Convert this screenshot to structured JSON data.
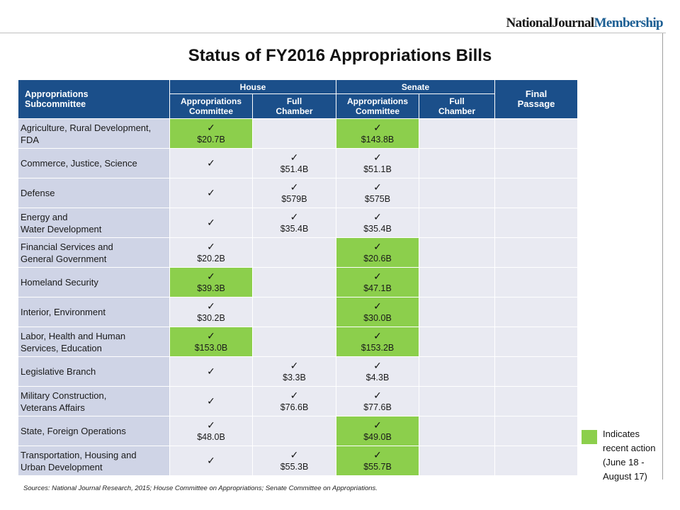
{
  "brand": {
    "part1": "NationalJournal",
    "part2": "Membership"
  },
  "title": "Status of FY2016 Appropriations Bills",
  "table": {
    "header": {
      "subcommittee": [
        "Appropriations",
        "Subcommittee"
      ],
      "house": "House",
      "senate": "Senate",
      "final": [
        "Final",
        "Passage"
      ],
      "house_approp": [
        "Appropriations",
        "Committee"
      ],
      "house_full": [
        "Full",
        "Chamber"
      ],
      "senate_approp": [
        "Appropriations",
        "Committee"
      ],
      "senate_full": [
        "Full",
        "Chamber"
      ]
    },
    "check_symbol": "✓",
    "rows": [
      {
        "name": [
          "Agriculture, Rural Development,",
          "FDA"
        ],
        "cells": [
          {
            "checked": true,
            "amount": "$20.7B",
            "highlight": true
          },
          {
            "checked": false,
            "amount": "",
            "highlight": false
          },
          {
            "checked": true,
            "amount": "$143.8B",
            "highlight": true
          },
          {
            "checked": false,
            "amount": "",
            "highlight": false
          },
          {
            "checked": false,
            "amount": "",
            "highlight": false
          }
        ]
      },
      {
        "name": [
          "Commerce, Justice, Science"
        ],
        "cells": [
          {
            "checked": true,
            "amount": "",
            "highlight": false
          },
          {
            "checked": true,
            "amount": "$51.4B",
            "highlight": false
          },
          {
            "checked": true,
            "amount": "$51.1B",
            "highlight": false
          },
          {
            "checked": false,
            "amount": "",
            "highlight": false
          },
          {
            "checked": false,
            "amount": "",
            "highlight": false
          }
        ]
      },
      {
        "name": [
          "Defense"
        ],
        "cells": [
          {
            "checked": true,
            "amount": "",
            "highlight": false
          },
          {
            "checked": true,
            "amount": "$579B",
            "highlight": false
          },
          {
            "checked": true,
            "amount": "$575B",
            "highlight": false
          },
          {
            "checked": false,
            "amount": "",
            "highlight": false
          },
          {
            "checked": false,
            "amount": "",
            "highlight": false
          }
        ]
      },
      {
        "name": [
          "Energy and",
          "Water Development"
        ],
        "cells": [
          {
            "checked": true,
            "amount": "",
            "highlight": false
          },
          {
            "checked": true,
            "amount": "$35.4B",
            "highlight": false
          },
          {
            "checked": true,
            "amount": "$35.4B",
            "highlight": false
          },
          {
            "checked": false,
            "amount": "",
            "highlight": false
          },
          {
            "checked": false,
            "amount": "",
            "highlight": false
          }
        ]
      },
      {
        "name": [
          "Financial Services and",
          "General Government"
        ],
        "cells": [
          {
            "checked": true,
            "amount": "$20.2B",
            "highlight": false
          },
          {
            "checked": false,
            "amount": "",
            "highlight": false
          },
          {
            "checked": true,
            "amount": "$20.6B",
            "highlight": true
          },
          {
            "checked": false,
            "amount": "",
            "highlight": false
          },
          {
            "checked": false,
            "amount": "",
            "highlight": false
          }
        ]
      },
      {
        "name": [
          "Homeland Security"
        ],
        "cells": [
          {
            "checked": true,
            "amount": "$39.3B",
            "highlight": true
          },
          {
            "checked": false,
            "amount": "",
            "highlight": false
          },
          {
            "checked": true,
            "amount": "$47.1B",
            "highlight": true
          },
          {
            "checked": false,
            "amount": "",
            "highlight": false
          },
          {
            "checked": false,
            "amount": "",
            "highlight": false
          }
        ]
      },
      {
        "name": [
          "Interior, Environment"
        ],
        "cells": [
          {
            "checked": true,
            "amount": "$30.2B",
            "highlight": false
          },
          {
            "checked": false,
            "amount": "",
            "highlight": false
          },
          {
            "checked": true,
            "amount": "$30.0B",
            "highlight": true
          },
          {
            "checked": false,
            "amount": "",
            "highlight": false
          },
          {
            "checked": false,
            "amount": "",
            "highlight": false
          }
        ]
      },
      {
        "name": [
          "Labor, Health and Human",
          "Services, Education"
        ],
        "cells": [
          {
            "checked": true,
            "amount": "$153.0B",
            "highlight": true
          },
          {
            "checked": false,
            "amount": "",
            "highlight": false
          },
          {
            "checked": true,
            "amount": "$153.2B",
            "highlight": true
          },
          {
            "checked": false,
            "amount": "",
            "highlight": false
          },
          {
            "checked": false,
            "amount": "",
            "highlight": false
          }
        ]
      },
      {
        "name": [
          "Legislative Branch"
        ],
        "cells": [
          {
            "checked": true,
            "amount": "",
            "highlight": false
          },
          {
            "checked": true,
            "amount": "$3.3B",
            "highlight": false
          },
          {
            "checked": true,
            "amount": "$4.3B",
            "highlight": false
          },
          {
            "checked": false,
            "amount": "",
            "highlight": false
          },
          {
            "checked": false,
            "amount": "",
            "highlight": false
          }
        ]
      },
      {
        "name": [
          "Military Construction,",
          "Veterans Affairs"
        ],
        "cells": [
          {
            "checked": true,
            "amount": "",
            "highlight": false
          },
          {
            "checked": true,
            "amount": "$76.6B",
            "highlight": false
          },
          {
            "checked": true,
            "amount": "$77.6B",
            "highlight": false
          },
          {
            "checked": false,
            "amount": "",
            "highlight": false
          },
          {
            "checked": false,
            "amount": "",
            "highlight": false
          }
        ]
      },
      {
        "name": [
          "State, Foreign Operations"
        ],
        "cells": [
          {
            "checked": true,
            "amount": "$48.0B",
            "highlight": false
          },
          {
            "checked": false,
            "amount": "",
            "highlight": false
          },
          {
            "checked": true,
            "amount": "$49.0B",
            "highlight": true
          },
          {
            "checked": false,
            "amount": "",
            "highlight": false
          },
          {
            "checked": false,
            "amount": "",
            "highlight": false
          }
        ]
      },
      {
        "name": [
          "Transportation, Housing and",
          "Urban Development"
        ],
        "cells": [
          {
            "checked": true,
            "amount": "",
            "highlight": false
          },
          {
            "checked": true,
            "amount": "$55.3B",
            "highlight": false
          },
          {
            "checked": true,
            "amount": "$55.7B",
            "highlight": true
          },
          {
            "checked": false,
            "amount": "",
            "highlight": false
          },
          {
            "checked": false,
            "amount": "",
            "highlight": false
          }
        ]
      }
    ]
  },
  "legend": {
    "lines": [
      "Indicates",
      "recent action",
      "(June 18 -",
      "August 17)"
    ],
    "swatch_color": "#8ccf4c"
  },
  "sources": "Sources: National Journal Research, 2015; House Committee on Appropriations; Senate Committee on Appropriations.",
  "colors": {
    "header": "#1b4f8a",
    "name_cell": "#cfd4e6",
    "data_cell": "#e9eaf2",
    "highlight": "#8ccf4c"
  }
}
